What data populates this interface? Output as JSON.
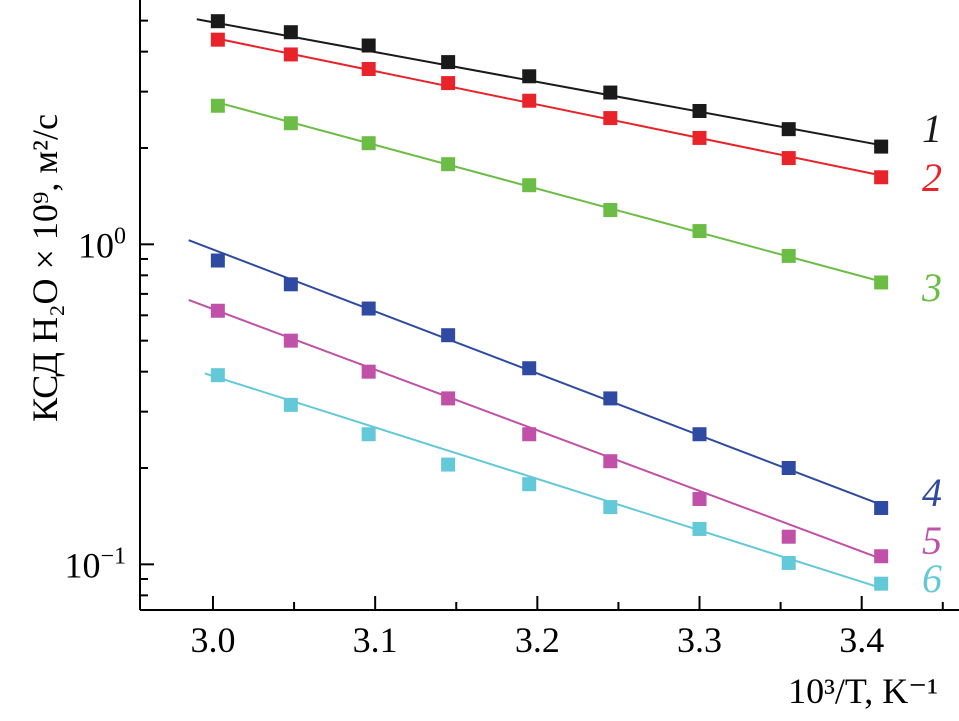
{
  "chart_data": {
    "type": "scatter",
    "title": "",
    "xlabel": "10³/T, K⁻¹",
    "ylabel": "КСД H₂O × 10⁹, м²/с",
    "x_scale": "linear",
    "y_scale": "log",
    "xlim": [
      2.955,
      3.46
    ],
    "ylim": [
      0.072,
      5.8
    ],
    "x_ticks": [
      3.0,
      3.1,
      3.2,
      3.3,
      3.4
    ],
    "x_tick_labels": [
      "3.0",
      "3.1",
      "3.2",
      "3.3",
      "3.4"
    ],
    "y_ticks": [
      1.0,
      0.1
    ],
    "y_tick_labels": [
      {
        "base": "10",
        "exp": "0"
      },
      {
        "base": "10",
        "exp": "−1"
      }
    ],
    "grid": false,
    "legend": "inline labels at right end of each series",
    "series": [
      {
        "name": "1",
        "color": "#1a1a1a",
        "x": [
          3.003,
          3.048,
          3.096,
          3.145,
          3.195,
          3.245,
          3.3,
          3.355,
          3.412
        ],
        "y": [
          4.98,
          4.6,
          4.18,
          3.71,
          3.35,
          2.98,
          2.61,
          2.29,
          2.02
        ],
        "fit": {
          "x": [
            2.99,
            3.41
          ],
          "y": [
            5.05,
            2.05
          ]
        }
      },
      {
        "name": "2",
        "color": "#e8232a",
        "x": [
          3.003,
          3.048,
          3.096,
          3.145,
          3.195,
          3.245,
          3.3,
          3.355,
          3.412
        ],
        "y": [
          4.36,
          3.92,
          3.53,
          3.19,
          2.81,
          2.48,
          2.15,
          1.86,
          1.62
        ],
        "fit": {
          "x": [
            3.0,
            3.41
          ],
          "y": [
            4.42,
            1.65
          ]
        }
      },
      {
        "name": "3",
        "color": "#6cbd45",
        "x": [
          3.003,
          3.048,
          3.096,
          3.145,
          3.195,
          3.245,
          3.3,
          3.355,
          3.412
        ],
        "y": [
          2.71,
          2.39,
          2.07,
          1.78,
          1.53,
          1.28,
          1.1,
          0.92,
          0.76
        ],
        "fit": {
          "x": [
            3.0,
            3.41
          ],
          "y": [
            2.8,
            0.77
          ]
        }
      },
      {
        "name": "4",
        "color": "#2f4aa1",
        "x": [
          3.003,
          3.048,
          3.096,
          3.145,
          3.195,
          3.245,
          3.3,
          3.355,
          3.412
        ],
        "y": [
          0.89,
          0.75,
          0.63,
          0.52,
          0.41,
          0.33,
          0.255,
          0.2,
          0.15
        ],
        "fit": {
          "x": [
            2.985,
            3.41
          ],
          "y": [
            1.03,
            0.155
          ]
        }
      },
      {
        "name": "5",
        "color": "#c050a8",
        "x": [
          3.003,
          3.048,
          3.096,
          3.145,
          3.195,
          3.245,
          3.3,
          3.355,
          3.412
        ],
        "y": [
          0.62,
          0.5,
          0.4,
          0.33,
          0.255,
          0.21,
          0.16,
          0.122,
          0.106
        ],
        "fit": {
          "x": [
            2.985,
            3.41
          ],
          "y": [
            0.67,
            0.105
          ]
        }
      },
      {
        "name": "6",
        "color": "#63c9d8",
        "x": [
          3.003,
          3.048,
          3.096,
          3.145,
          3.195,
          3.245,
          3.3,
          3.355,
          3.412
        ],
        "y": [
          0.39,
          0.315,
          0.255,
          0.205,
          0.178,
          0.151,
          0.129,
          0.101,
          0.087
        ],
        "fit": {
          "x": [
            2.995,
            3.41
          ],
          "y": [
            0.395,
            0.085
          ]
        }
      }
    ]
  }
}
